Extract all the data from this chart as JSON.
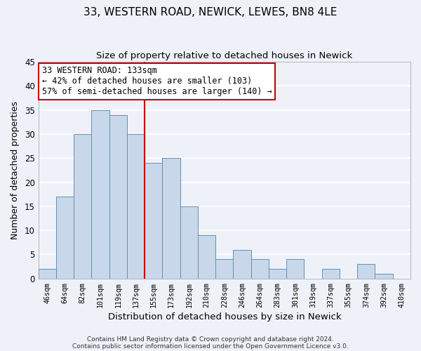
{
  "title": "33, WESTERN ROAD, NEWICK, LEWES, BN8 4LE",
  "subtitle": "Size of property relative to detached houses in Newick",
  "xlabel": "Distribution of detached houses by size in Newick",
  "ylabel": "Number of detached properties",
  "bar_color": "#c8d8ea",
  "bar_edge_color": "#6090b8",
  "background_color": "#eef2f8",
  "grid_color": "white",
  "categories": [
    "46sqm",
    "64sqm",
    "82sqm",
    "101sqm",
    "119sqm",
    "137sqm",
    "155sqm",
    "173sqm",
    "192sqm",
    "210sqm",
    "228sqm",
    "246sqm",
    "264sqm",
    "283sqm",
    "301sqm",
    "319sqm",
    "337sqm",
    "355sqm",
    "374sqm",
    "392sqm",
    "410sqm"
  ],
  "values": [
    2,
    17,
    30,
    35,
    34,
    30,
    24,
    25,
    15,
    9,
    4,
    6,
    4,
    2,
    4,
    0,
    2,
    0,
    3,
    1,
    0
  ],
  "ylim": [
    0,
    45
  ],
  "yticks": [
    0,
    5,
    10,
    15,
    20,
    25,
    30,
    35,
    40,
    45
  ],
  "vline_x": 5.5,
  "vline_color": "#cc0000",
  "annotation_title": "33 WESTERN ROAD: 133sqm",
  "annotation_line1": "← 42% of detached houses are smaller (103)",
  "annotation_line2": "57% of semi-detached houses are larger (140) →",
  "annotation_box_color": "white",
  "annotation_box_edge_color": "#cc0000",
  "footer1": "Contains HM Land Registry data © Crown copyright and database right 2024.",
  "footer2": "Contains public sector information licensed under the Open Government Licence v3.0."
}
